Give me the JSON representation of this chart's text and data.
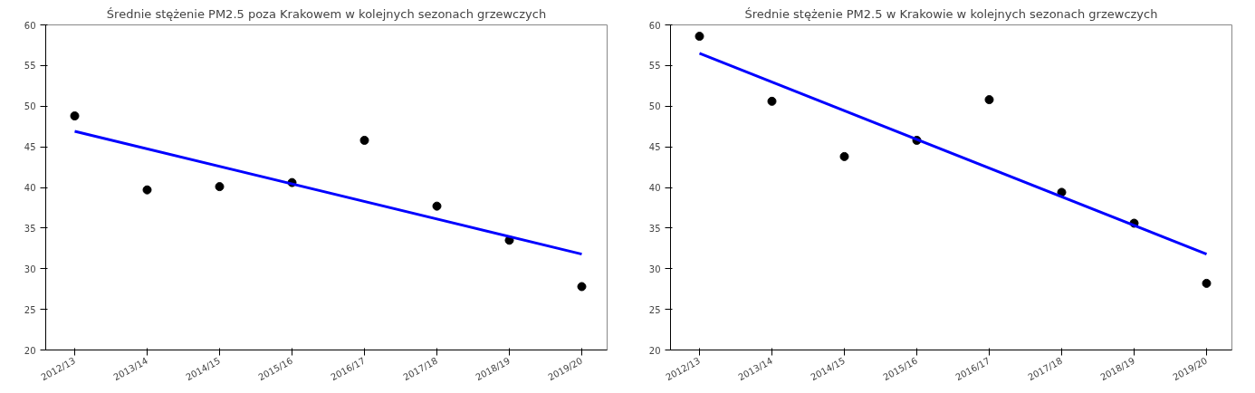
{
  "chart_data": [
    {
      "type": "scatter",
      "title": "Średnie stężenie PM2.5 poza Krakowem w kolejnych sezonach grzewczych",
      "categories": [
        "2012/13",
        "2013/14",
        "2014/15",
        "2015/16",
        "2016/17",
        "2017/18",
        "2018/19",
        "2019/20"
      ],
      "grid": false,
      "ylim": [
        20,
        60
      ],
      "yticks": [
        20,
        25,
        30,
        35,
        40,
        45,
        50,
        55,
        60
      ],
      "series": [
        {
          "color": "#000000",
          "marker": "circle",
          "values": [
            48.8,
            39.7,
            40.1,
            40.6,
            45.8,
            37.7,
            33.5,
            27.8
          ]
        },
        {
          "type": "line",
          "color": "#0000ff",
          "marker": "none",
          "x": [
            "2012/13",
            "2019/20"
          ],
          "values": [
            46.9,
            31.8
          ]
        }
      ]
    },
    {
      "type": "scatter",
      "title": "Średnie stężenie PM2.5 w Krakowie w kolejnych sezonach grzewczych",
      "categories": [
        "2012/13",
        "2013/14",
        "2014/15",
        "2015/16",
        "2016/17",
        "2017/18",
        "2018/19",
        "2019/20"
      ],
      "grid": false,
      "ylim": [
        20,
        60
      ],
      "yticks": [
        20,
        25,
        30,
        35,
        40,
        45,
        50,
        55,
        60
      ],
      "series": [
        {
          "color": "#000000",
          "marker": "circle",
          "values": [
            58.6,
            50.6,
            43.8,
            45.8,
            50.8,
            39.4,
            35.6,
            28.2
          ]
        },
        {
          "type": "line",
          "color": "#0000ff",
          "marker": "none",
          "x": [
            "2012/13",
            "2019/20"
          ],
          "values": [
            56.5,
            31.8
          ]
        }
      ]
    }
  ]
}
